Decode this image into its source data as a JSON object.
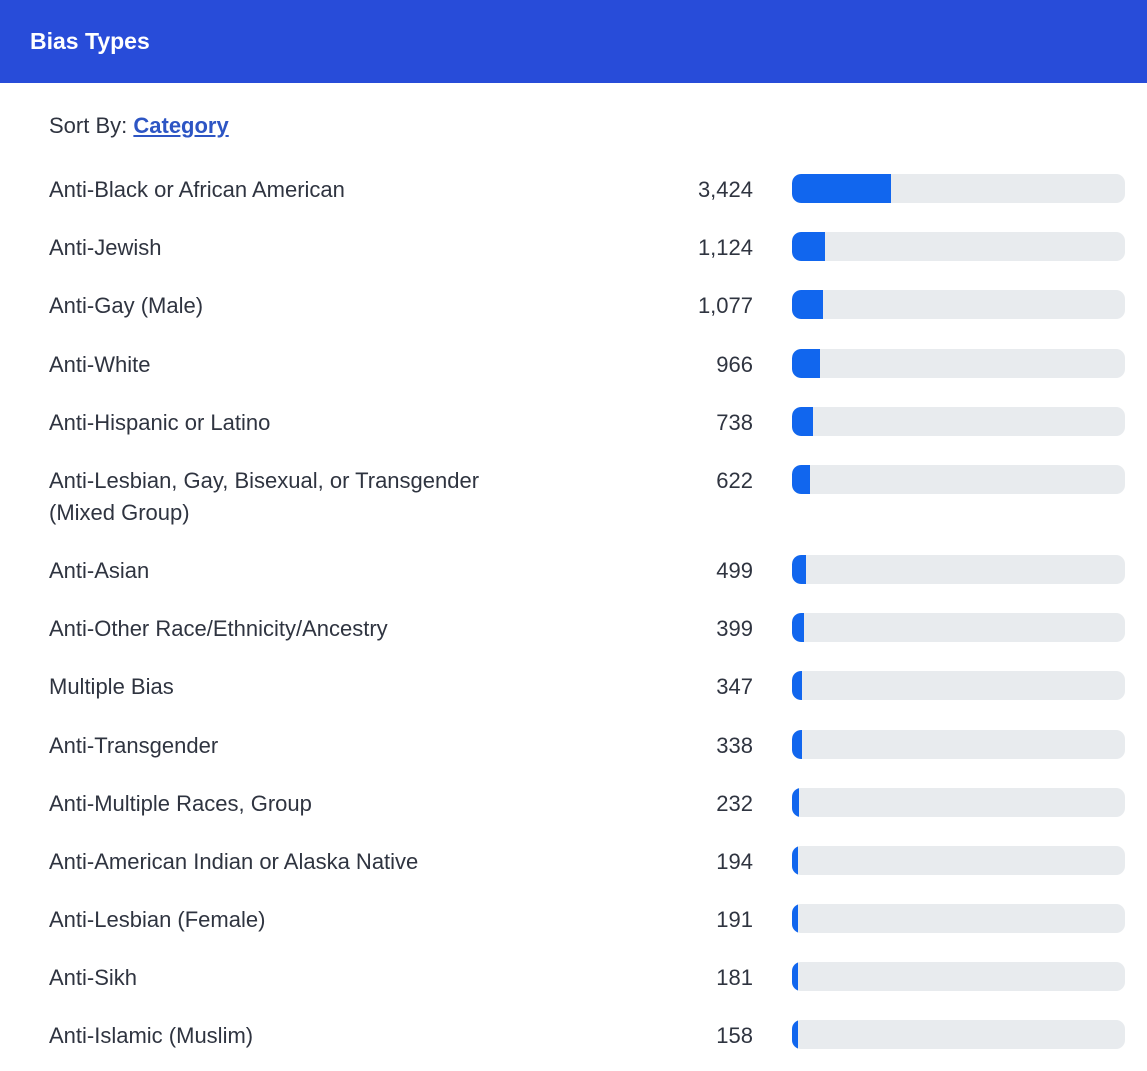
{
  "header": {
    "title": "Bias Types"
  },
  "sort": {
    "label": "Sort By:",
    "value": "Category"
  },
  "colors": {
    "header": "#284cd9",
    "bar": "#1166ee",
    "track": "#e8ebee",
    "link": "#2d55c4"
  },
  "chart_data": {
    "type": "bar",
    "orientation": "horizontal",
    "title": "Bias Types",
    "categories": [
      "Anti-Black or African American",
      "Anti-Jewish",
      "Anti-Gay (Male)",
      "Anti-White",
      "Anti-Hispanic or Latino",
      "Anti-Lesbian, Gay, Bisexual, or Transgender (Mixed Group)",
      "Anti-Asian",
      "Anti-Other Race/Ethnicity/Ancestry",
      "Multiple Bias",
      "Anti-Transgender",
      "Anti-Multiple Races, Group",
      "Anti-American Indian or Alaska Native",
      "Anti-Lesbian (Female)",
      "Anti-Sikh",
      "Anti-Islamic (Muslim)"
    ],
    "values": [
      3424,
      1124,
      1077,
      966,
      738,
      622,
      499,
      399,
      347,
      338,
      232,
      194,
      191,
      181,
      158
    ],
    "value_labels": [
      "3,424",
      "1,124",
      "1,077",
      "966",
      "738",
      "622",
      "499",
      "399",
      "347",
      "338",
      "232",
      "194",
      "191",
      "181",
      "158"
    ],
    "xlim": [
      0,
      11500
    ]
  }
}
